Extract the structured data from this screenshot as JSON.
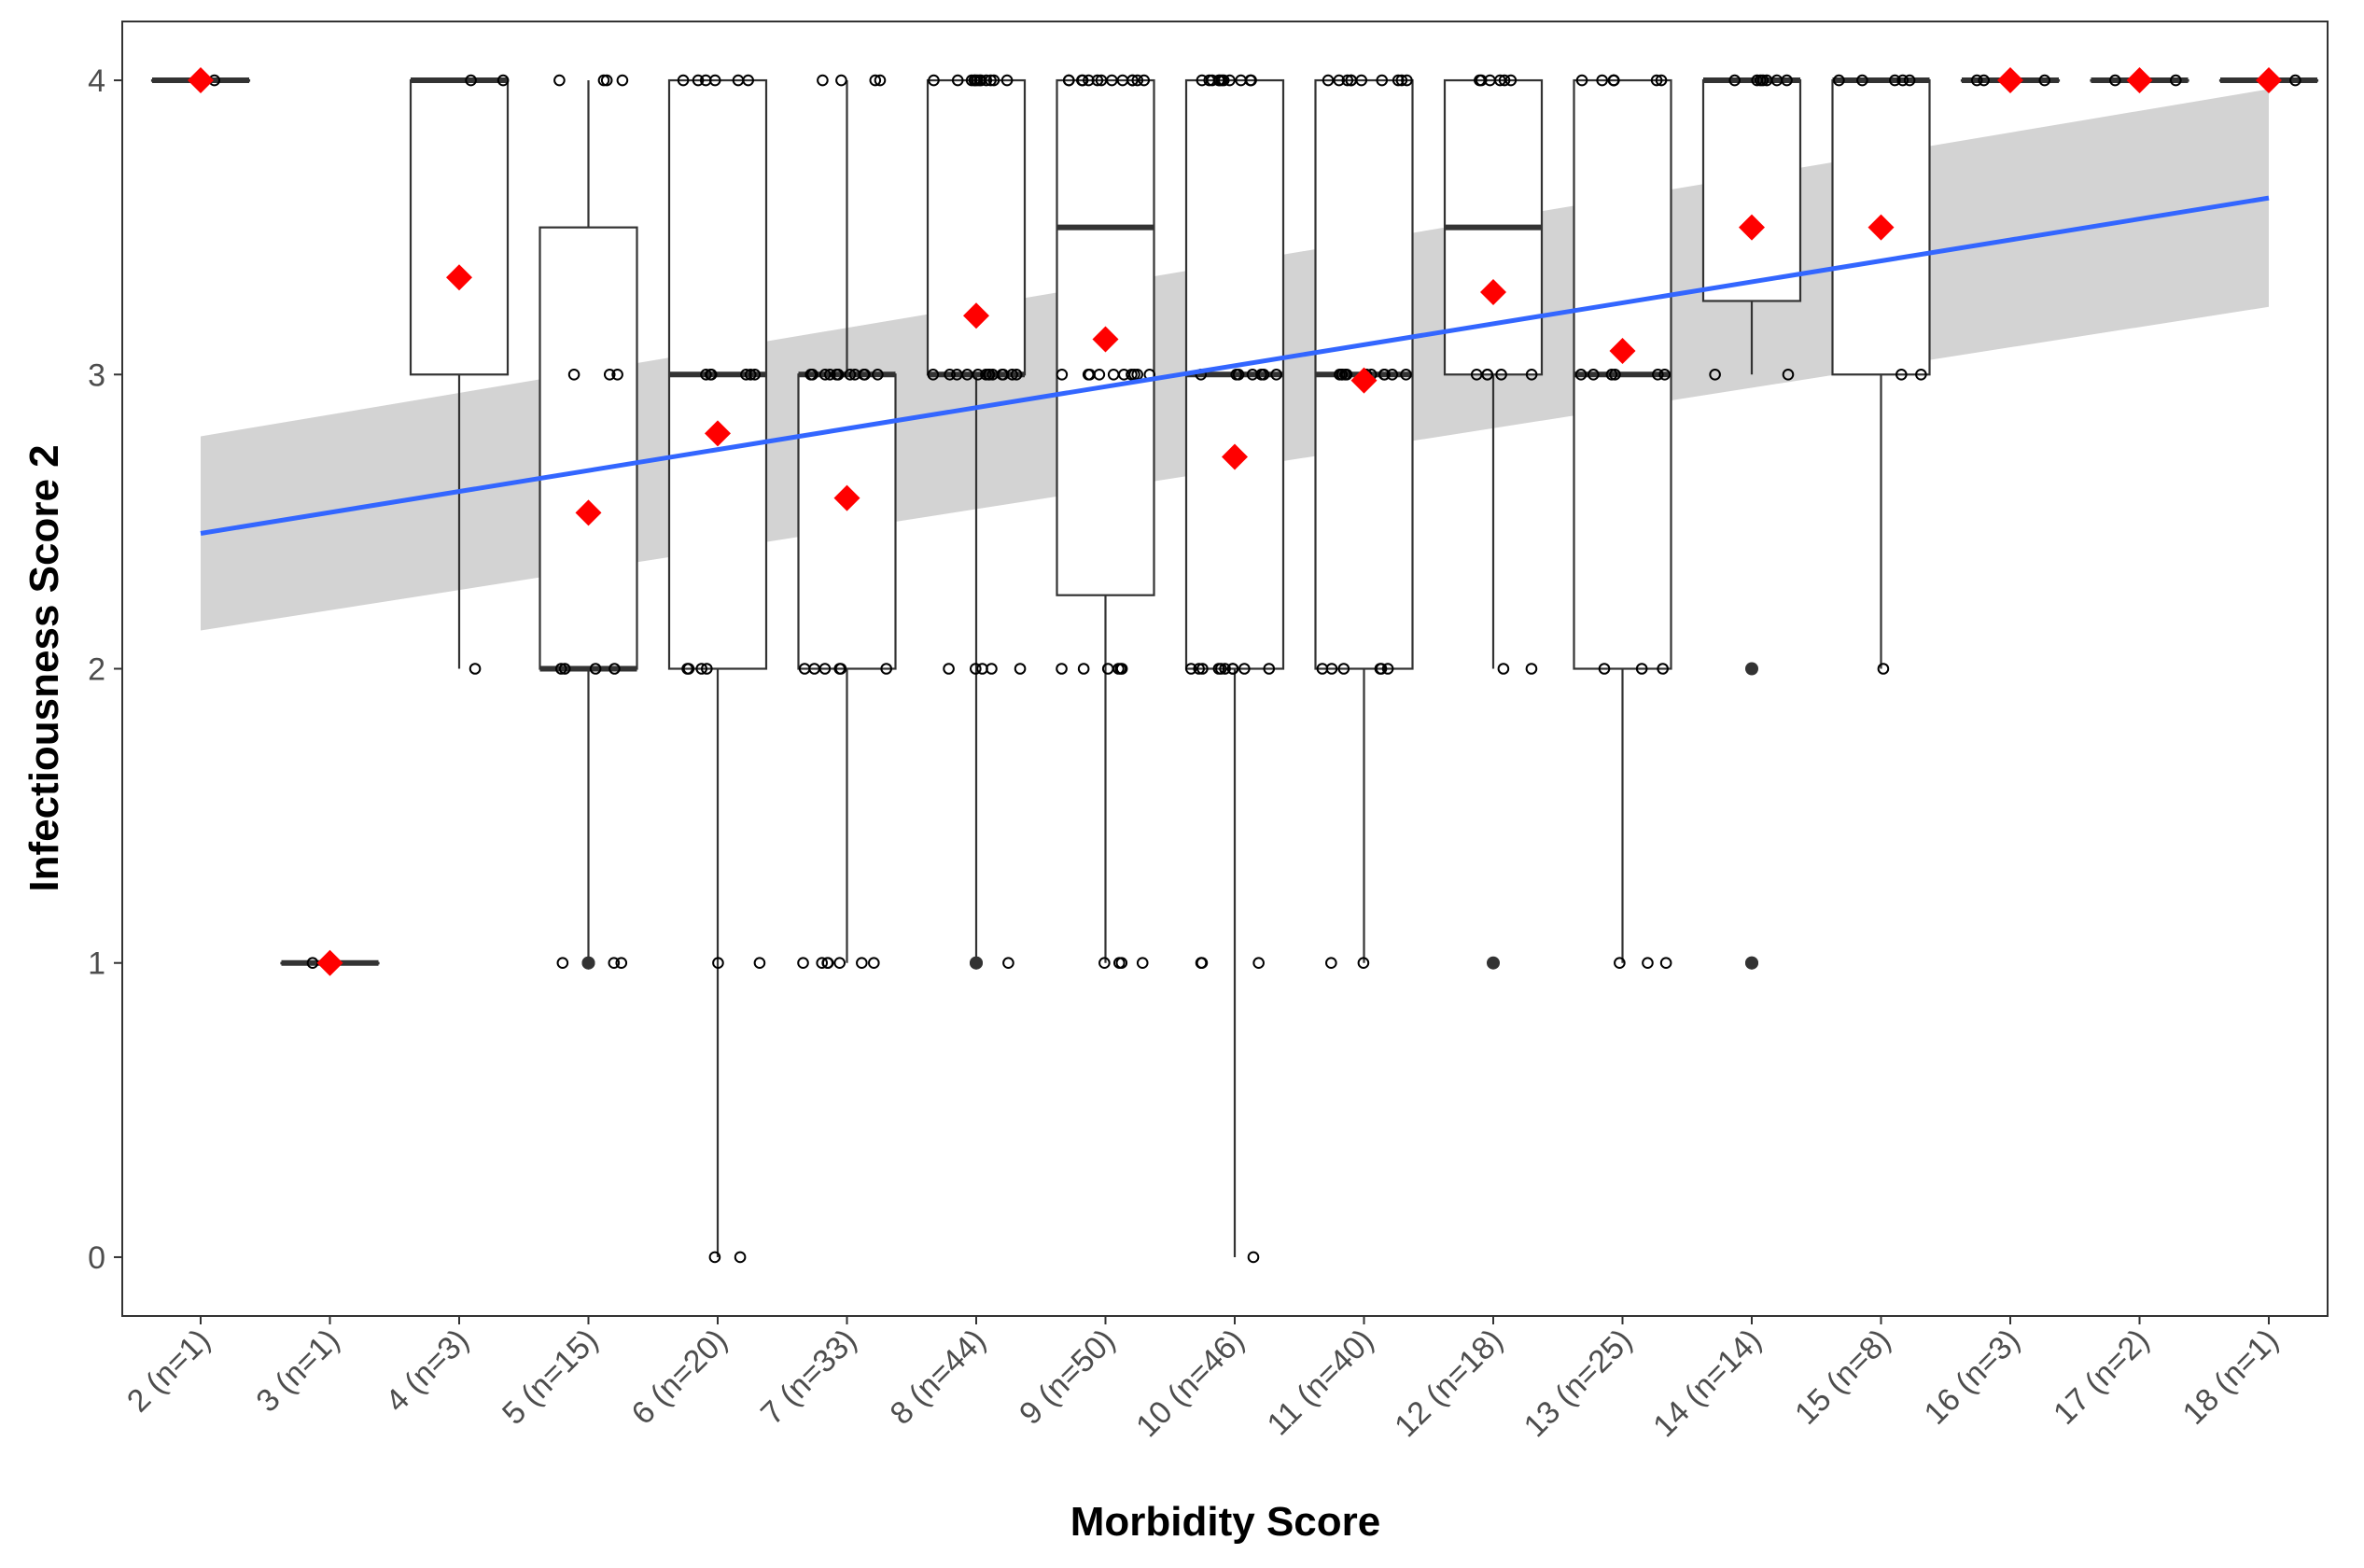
{
  "chart_data": {
    "type": "box",
    "title": "",
    "xlabel": "Morbidity Score",
    "ylabel": "Infectiousness Score 2",
    "ylim": [
      -0.2,
      4.2
    ],
    "yticks": [
      0,
      1,
      2,
      3,
      4
    ],
    "grid": false,
    "legend": "none",
    "categories": [
      "2 (n=1)",
      "3 (n=1)",
      "4 (n=3)",
      "5 (n=15)",
      "6 (n=20)",
      "7 (n=33)",
      "8 (n=44)",
      "9 (n=50)",
      "10 (n=46)",
      "11 (n=40)",
      "12 (n=18)",
      "13 (n=25)",
      "14 (n=14)",
      "15 (n=8)",
      "16 (n=3)",
      "17 (n=2)",
      "18 (n=1)"
    ],
    "boxes": [
      {
        "min": 4,
        "q1": 4,
        "median": 4,
        "q3": 4,
        "max": 4,
        "mean": 4.0
      },
      {
        "min": 1,
        "q1": 1,
        "median": 1,
        "q3": 1,
        "max": 1,
        "mean": 1.0
      },
      {
        "min": 2,
        "q1": 3,
        "median": 4,
        "q3": 4,
        "max": 4,
        "mean": 3.33
      },
      {
        "min": 1,
        "q1": 2,
        "median": 2,
        "q3": 3.5,
        "max": 4,
        "mean": 2.53
      },
      {
        "min": 0,
        "q1": 2,
        "median": 3,
        "q3": 4,
        "max": 4,
        "mean": 2.8
      },
      {
        "min": 1,
        "q1": 2,
        "median": 3,
        "q3": 3,
        "max": 4,
        "mean": 2.58
      },
      {
        "min": 1,
        "q1": 3,
        "median": 3,
        "q3": 4,
        "max": 4,
        "mean": 3.2
      },
      {
        "min": 1,
        "q1": 2.25,
        "median": 3.5,
        "q3": 4,
        "max": 4,
        "mean": 3.12
      },
      {
        "min": 0,
        "q1": 2,
        "median": 3,
        "q3": 4,
        "max": 4,
        "mean": 2.72
      },
      {
        "min": 1,
        "q1": 2,
        "median": 3,
        "q3": 4,
        "max": 4,
        "mean": 2.98
      },
      {
        "min": 2,
        "q1": 3,
        "median": 3.5,
        "q3": 4,
        "max": 4,
        "mean": 3.28
      },
      {
        "min": 1,
        "q1": 2,
        "median": 3,
        "q3": 4,
        "max": 4,
        "mean": 3.08
      },
      {
        "min": 3,
        "q1": 3.25,
        "median": 4,
        "q3": 4,
        "max": 4,
        "mean": 3.5
      },
      {
        "min": 2,
        "q1": 3,
        "median": 4,
        "q3": 4,
        "max": 4,
        "mean": 3.5
      },
      {
        "min": 4,
        "q1": 4,
        "median": 4,
        "q3": 4,
        "max": 4,
        "mean": 4.0
      },
      {
        "min": 4,
        "q1": 4,
        "median": 4,
        "q3": 4,
        "max": 4,
        "mean": 4.0
      },
      {
        "min": 4,
        "q1": 4,
        "median": 4,
        "q3": 4,
        "max": 4,
        "mean": 4.0
      }
    ],
    "outliers": [
      {
        "category": 3,
        "values": [
          1,
          1
        ]
      },
      {
        "category": 6,
        "values": [
          1,
          1
        ]
      },
      {
        "category": 10,
        "values": [
          1
        ]
      },
      {
        "category": 12,
        "values": [
          2,
          1,
          1
        ]
      }
    ],
    "jitter_points": [
      {
        "category": 0,
        "values": [
          4
        ]
      },
      {
        "category": 1,
        "values": [
          1
        ]
      },
      {
        "category": 2,
        "values": [
          4,
          4,
          2
        ]
      },
      {
        "category": 3,
        "values": [
          4,
          4,
          4,
          4,
          3,
          3,
          3,
          2,
          2,
          2,
          2,
          1,
          1,
          1
        ]
      },
      {
        "category": 4,
        "values": [
          4,
          4,
          4,
          4,
          4,
          4,
          3,
          3,
          3,
          3,
          3,
          3,
          2,
          2,
          2,
          2,
          1,
          1,
          0,
          0
        ]
      },
      {
        "category": 5,
        "values": [
          4,
          4,
          4,
          4,
          3,
          3,
          3,
          3,
          3,
          3,
          3,
          3,
          3,
          3,
          3,
          3,
          3,
          2,
          2,
          2,
          2,
          2,
          2,
          1,
          1,
          1,
          1,
          1,
          1,
          1
        ]
      },
      {
        "category": 6,
        "values": [
          4,
          4,
          4,
          4,
          4,
          4,
          4,
          4,
          4,
          4,
          4,
          4,
          3,
          3,
          3,
          3,
          3,
          3,
          3,
          3,
          3,
          3,
          3,
          3,
          3,
          2,
          2,
          2,
          2,
          2,
          1
        ]
      },
      {
        "category": 7,
        "values": [
          4,
          4,
          4,
          4,
          4,
          4,
          4,
          4,
          4,
          4,
          4,
          4,
          4,
          3,
          3,
          3,
          3,
          3,
          3,
          3,
          3,
          3,
          3,
          2,
          2,
          2,
          2,
          2,
          2,
          1,
          1,
          1,
          1
        ]
      },
      {
        "category": 8,
        "values": [
          4,
          4,
          4,
          4,
          4,
          4,
          4,
          4,
          4,
          4,
          4,
          3,
          3,
          3,
          3,
          3,
          3,
          3,
          2,
          2,
          2,
          2,
          2,
          2,
          2,
          2,
          2,
          2,
          1,
          1,
          1,
          1,
          0
        ]
      },
      {
        "category": 9,
        "values": [
          4,
          4,
          4,
          4,
          4,
          4,
          4,
          4,
          4,
          4,
          3,
          3,
          3,
          3,
          3,
          3,
          3,
          3,
          3,
          3,
          3,
          3,
          2,
          2,
          2,
          2,
          2,
          2,
          1,
          1
        ]
      },
      {
        "category": 10,
        "values": [
          4,
          4,
          4,
          4,
          4,
          4,
          3,
          3,
          3,
          3,
          3,
          2,
          2
        ]
      },
      {
        "category": 11,
        "values": [
          4,
          4,
          4,
          4,
          4,
          4,
          4,
          3,
          3,
          3,
          3,
          3,
          3,
          2,
          2,
          2,
          1,
          1,
          1
        ]
      },
      {
        "category": 12,
        "values": [
          4,
          4,
          4,
          4,
          4,
          4,
          4,
          3,
          3
        ]
      },
      {
        "category": 13,
        "values": [
          4,
          4,
          4,
          4,
          4,
          3,
          3,
          2
        ]
      },
      {
        "category": 14,
        "values": [
          4,
          4,
          4
        ]
      },
      {
        "category": 15,
        "values": [
          4,
          4
        ]
      },
      {
        "category": 16,
        "values": [
          4
        ]
      }
    ],
    "trend": {
      "x_start": "2 (n=1)",
      "y_start": 2.46,
      "x_end": "18 (n=1)",
      "y_end": 3.6,
      "ci_start": [
        2.13,
        2.79
      ],
      "ci_end": [
        3.23,
        3.97
      ]
    },
    "colors": {
      "trend_line": "#3366FF",
      "confidence_band": "#d3d3d3",
      "mean_marker": "#FF0000",
      "box_stroke": "#333333",
      "point": "#000000"
    }
  }
}
